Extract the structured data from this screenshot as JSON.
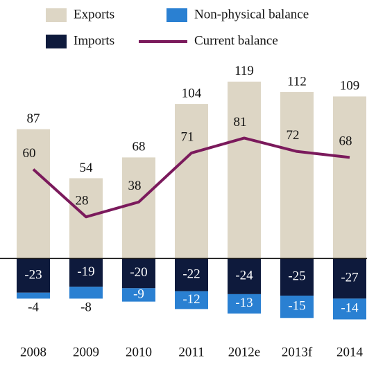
{
  "chart_data": {
    "type": "bar",
    "categories": [
      "2008",
      "2009",
      "2010",
      "2011",
      "2012e",
      "2013f",
      "2014"
    ],
    "series": [
      {
        "name": "Exports",
        "color": "#ddd6c5",
        "values": [
          87,
          54,
          68,
          104,
          119,
          112,
          109
        ]
      },
      {
        "name": "Imports",
        "color": "#0e1a3c",
        "values": [
          -23,
          -19,
          -20,
          -22,
          -24,
          -25,
          -27
        ]
      },
      {
        "name": "Non-physical balance",
        "color": "#2a80d2",
        "values": [
          -4,
          -8,
          -9,
          -12,
          -13,
          -15,
          -14
        ]
      },
      {
        "name": "Current balance",
        "color": "#7b1a5c",
        "type": "line",
        "values": [
          60,
          28,
          38,
          71,
          81,
          72,
          68
        ]
      }
    ],
    "ylim": [
      -45,
      125
    ]
  }
}
